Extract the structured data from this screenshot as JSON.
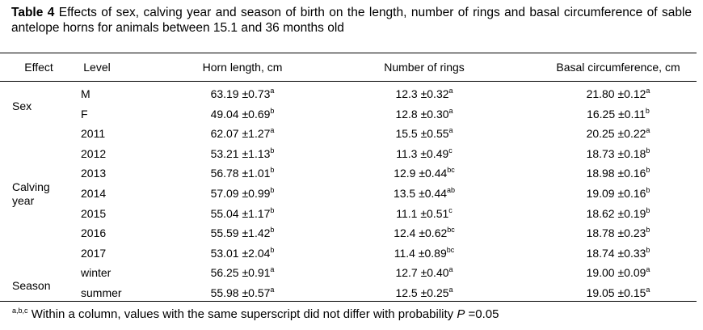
{
  "caption": {
    "label": "Table 4",
    "text": "Effects of sex, calving year and season of birth on the length, number of rings and basal circumference of sable antelope horns for animals between 15.1 and 36 months old"
  },
  "table": {
    "header": [
      "Effect",
      "Level",
      "Horn length, cm",
      "Number of rings",
      "Basal circumference, cm"
    ],
    "groups": [
      {
        "effect": "Sex",
        "rows": [
          {
            "level": "M",
            "cells": [
              {
                "text": "63.19 ±0.73",
                "sup": "a"
              },
              {
                "text": "12.3 ±0.32",
                "sup": "a"
              },
              {
                "text": "21.80 ±0.12",
                "sup": "a"
              }
            ]
          },
          {
            "level": "F",
            "cells": [
              {
                "text": "49.04 ±0.69",
                "sup": "b"
              },
              {
                "text": "12.8 ±0.30",
                "sup": "a"
              },
              {
                "text": "16.25 ±0.11",
                "sup": "b"
              }
            ]
          }
        ]
      },
      {
        "effect": "Calving year",
        "rows": [
          {
            "level": "2011",
            "cells": [
              {
                "text": "62.07 ±1.27",
                "sup": "a"
              },
              {
                "text": "15.5 ±0.55",
                "sup": "a"
              },
              {
                "text": "20.25 ±0.22",
                "sup": "a"
              }
            ]
          },
          {
            "level": "2012",
            "cells": [
              {
                "text": "53.21 ±1.13",
                "sup": "b"
              },
              {
                "text": "11.3 ±0.49",
                "sup": "c"
              },
              {
                "text": "18.73 ±0.18",
                "sup": "b"
              }
            ]
          },
          {
            "level": "2013",
            "cells": [
              {
                "text": "56.78 ±1.01",
                "sup": "b"
              },
              {
                "text": "12.9 ±0.44",
                "sup": "bc"
              },
              {
                "text": "18.98 ±0.16",
                "sup": "b"
              }
            ]
          },
          {
            "level": "2014",
            "cells": [
              {
                "text": "57.09 ±0.99",
                "sup": "b"
              },
              {
                "text": "13.5 ±0.44",
                "sup": "ab"
              },
              {
                "text": "19.09 ±0.16",
                "sup": "b"
              }
            ]
          },
          {
            "level": "2015",
            "cells": [
              {
                "text": "55.04 ±1.17",
                "sup": "b"
              },
              {
                "text": "11.1 ±0.51",
                "sup": "c"
              },
              {
                "text": "18.62 ±0.19",
                "sup": "b"
              }
            ]
          },
          {
            "level": "2016",
            "cells": [
              {
                "text": "55.59 ±1.42",
                "sup": "b"
              },
              {
                "text": "12.4 ±0.62",
                "sup": "bc"
              },
              {
                "text": "18.78 ±0.23",
                "sup": "b"
              }
            ]
          },
          {
            "level": "2017",
            "cells": [
              {
                "text": "53.01 ±2.04",
                "sup": "b"
              },
              {
                "text": "11.4 ±0.89",
                "sup": "bc"
              },
              {
                "text": "18.74 ±0.33",
                "sup": "b"
              }
            ]
          }
        ]
      },
      {
        "effect": "Season",
        "rows": [
          {
            "level": "winter",
            "cells": [
              {
                "text": "56.25 ±0.91",
                "sup": "a"
              },
              {
                "text": "12.7 ±0.40",
                "sup": "a"
              },
              {
                "text": "19.00 ±0.09",
                "sup": "a"
              }
            ]
          },
          {
            "level": "summer",
            "cells": [
              {
                "text": "55.98 ±0.57",
                "sup": "a"
              },
              {
                "text": "12.5 ±0.25",
                "sup": "a"
              },
              {
                "text": "19.05 ±0.15",
                "sup": "a"
              }
            ]
          }
        ]
      }
    ]
  },
  "footnote": {
    "sup": "a,b,c",
    "text": "Within a column, values with the same superscript did not differ with probability",
    "symbol": "P",
    "rest": "=0.05"
  }
}
